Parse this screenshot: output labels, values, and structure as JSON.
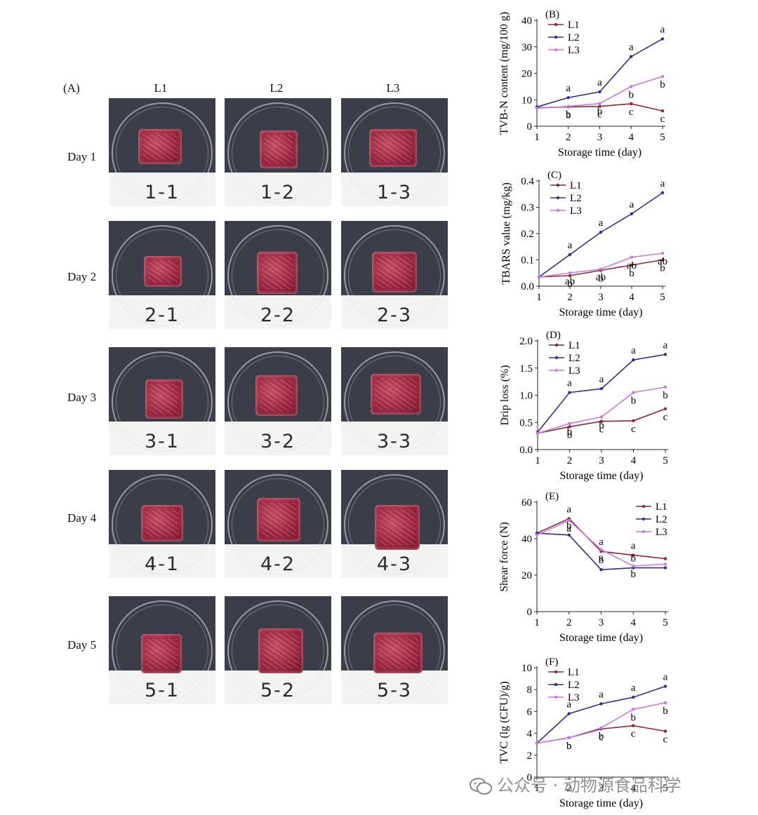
{
  "panelA": {
    "label": "(A)",
    "columns": [
      "L1",
      "L2",
      "L3"
    ],
    "rows": [
      "Day 1",
      "Day 2",
      "Day 3",
      "Day 4",
      "Day 5"
    ],
    "tags": [
      [
        "1-1",
        "1-2",
        "1-3"
      ],
      [
        "2-1",
        "2-2",
        "2-3"
      ],
      [
        "3-1",
        "3-2",
        "3-3"
      ],
      [
        "4-1",
        "4-2",
        "4-3"
      ],
      [
        "5-1",
        "5-2",
        "5-3"
      ]
    ]
  },
  "colors": {
    "L1": "#8b2a2e",
    "L2": "#3b2a8c",
    "L3": "#c77bdc"
  },
  "chart_data": [
    {
      "type": "line",
      "panel": "(B)",
      "x": [
        1,
        2,
        3,
        4,
        5
      ],
      "xlabel": "Storage time (day)",
      "ylabel": "TVB-N content (mg/100 g)",
      "ylim": [
        0,
        40
      ],
      "yticks": [
        "0",
        "10",
        "20",
        "30",
        "40"
      ],
      "xticks": [
        "1",
        "2",
        "3",
        "4",
        "5"
      ],
      "legend": "top-left",
      "series": [
        {
          "name": "L1",
          "values": [
            7,
            7.3,
            7.5,
            8.5,
            5.8
          ],
          "letters": [
            "",
            "b",
            "c",
            "c",
            "c"
          ]
        },
        {
          "name": "L2",
          "values": [
            7.3,
            10.8,
            13,
            26.3,
            33
          ],
          "letters": [
            "",
            "a",
            "a",
            "a",
            "a"
          ]
        },
        {
          "name": "L3",
          "values": [
            6.8,
            7.5,
            8.6,
            15,
            18.8
          ],
          "letters": [
            "",
            "b",
            "b",
            "b",
            "b"
          ]
        }
      ]
    },
    {
      "type": "line",
      "panel": "(C)",
      "x": [
        1,
        2,
        3,
        4,
        5
      ],
      "xlabel": "Storage time (day)",
      "ylabel": "TBARS value (mg/kg)",
      "ylim": [
        0,
        0.4
      ],
      "yticks": [
        "0.0",
        "0.1",
        "0.2",
        "0.3",
        "0.4"
      ],
      "xticks": [
        "1",
        "2",
        "3",
        "4",
        "5"
      ],
      "legend": "top-left",
      "series": [
        {
          "name": "L1",
          "values": [
            0.035,
            0.04,
            0.06,
            0.08,
            0.1
          ],
          "letters": [
            "",
            "b",
            "b",
            "b",
            "b"
          ]
        },
        {
          "name": "L2",
          "values": [
            0.035,
            0.12,
            0.205,
            0.275,
            0.355
          ],
          "letters": [
            "",
            "a",
            "a",
            "a",
            "a"
          ]
        },
        {
          "name": "L3",
          "values": [
            0.035,
            0.05,
            0.065,
            0.11,
            0.125
          ],
          "letters": [
            "",
            "ab",
            "ab",
            "ab",
            "ab"
          ]
        }
      ]
    },
    {
      "type": "line",
      "panel": "(D)",
      "x": [
        1,
        2,
        3,
        4,
        5
      ],
      "xlabel": "Storage time (day)",
      "ylabel": "Drip loss (%)",
      "ylim": [
        0,
        2.0
      ],
      "yticks": [
        "0.0",
        "0.5",
        "1.0",
        "1.5",
        "2.0"
      ],
      "xticks": [
        "1",
        "2",
        "3",
        "4",
        "5"
      ],
      "legend": "top-left",
      "series": [
        {
          "name": "L1",
          "values": [
            0.3,
            0.42,
            0.52,
            0.53,
            0.75
          ],
          "letters": [
            "",
            "b",
            "c",
            "c",
            "c"
          ]
        },
        {
          "name": "L2",
          "values": [
            0.32,
            1.05,
            1.12,
            1.65,
            1.75
          ],
          "letters": [
            "",
            "a",
            "a",
            "a",
            "a"
          ]
        },
        {
          "name": "L3",
          "values": [
            0.3,
            0.48,
            0.6,
            1.05,
            1.15
          ],
          "letters": [
            "",
            "b",
            "b",
            "b",
            "b"
          ]
        }
      ]
    },
    {
      "type": "line",
      "panel": "(E)",
      "x": [
        1,
        2,
        3,
        4,
        5
      ],
      "xlabel": "Storage time (day)",
      "ylabel": "Shear force (N)",
      "ylim": [
        0,
        60
      ],
      "yticks": [
        "0",
        "20",
        "40",
        "60"
      ],
      "xticks": [
        "1",
        "2",
        "3",
        "4",
        "5"
      ],
      "legend": "top-right",
      "series": [
        {
          "name": "L1",
          "values": [
            43,
            51,
            33,
            31,
            29
          ],
          "letters": [
            "",
            "a",
            "a",
            "a",
            ""
          ]
        },
        {
          "name": "L2",
          "values": [
            43,
            42,
            23,
            24,
            24
          ],
          "letters": [
            "",
            "b",
            "b",
            "b",
            ""
          ]
        },
        {
          "name": "L3",
          "values": [
            42,
            50,
            34,
            25,
            26
          ],
          "letters": [
            "",
            "a",
            "a",
            "b",
            ""
          ]
        }
      ]
    },
    {
      "type": "line",
      "panel": "(F)",
      "x": [
        1,
        2,
        3,
        4,
        5
      ],
      "xlabel": "Storage time (day)",
      "ylabel": "TVC (lg (CFU)/g)",
      "ylim": [
        0,
        10
      ],
      "yticks": [
        "0",
        "2",
        "4",
        "6",
        "8",
        "10"
      ],
      "xticks": [
        "1",
        "2",
        "3",
        "4",
        "5"
      ],
      "legend": "top-left",
      "series": [
        {
          "name": "L1",
          "values": [
            3.1,
            3.6,
            4.4,
            4.7,
            4.2
          ],
          "letters": [
            "",
            "b",
            "c",
            "c",
            "c"
          ]
        },
        {
          "name": "L2",
          "values": [
            3.1,
            5.8,
            6.7,
            7.3,
            8.3
          ],
          "letters": [
            "",
            "a",
            "a",
            "a",
            "a"
          ]
        },
        {
          "name": "L3",
          "values": [
            3.1,
            3.6,
            4.5,
            6.2,
            6.8
          ],
          "letters": [
            "",
            "b",
            "b",
            "b",
            "b"
          ]
        }
      ]
    }
  ],
  "watermark": "公众号 · 动物源食品科学"
}
